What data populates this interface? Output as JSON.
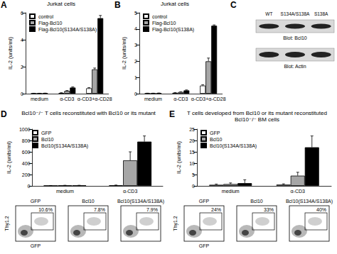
{
  "chart_data": [
    {
      "panel": "A",
      "type": "bar",
      "title": "Jurkat cells",
      "y_label": "IL-2 (units/ml)",
      "categories": [
        "medium",
        "α-CD3",
        "α-CD3+α-CD28"
      ],
      "series": [
        {
          "name": "control",
          "color": "#ffffff",
          "values": [
            0.02,
            0.05,
            0.4
          ],
          "errors": [
            0.01,
            0.02,
            0.05
          ]
        },
        {
          "name": "Flag-Bcl10",
          "color": "#a6a6a6",
          "values": [
            0.02,
            0.2,
            1.8
          ],
          "errors": [
            0.01,
            0.03,
            0.1
          ]
        },
        {
          "name": "Flag-Bcl10(S134A/S138A)",
          "color": "#000000",
          "values": [
            0.03,
            0.45,
            5.6
          ],
          "errors": [
            0.01,
            0.05,
            0.2
          ]
        }
      ],
      "ylim": [
        0,
        6
      ],
      "yticks": [
        0,
        2,
        4,
        6
      ],
      "grid": false,
      "legend": "top-left"
    },
    {
      "panel": "B",
      "type": "bar",
      "title": "Jurkat cells",
      "y_label": "IL-2 (units/ml)",
      "categories": [
        "medium",
        "α-CD3",
        "α-CD3+α-CD28"
      ],
      "series": [
        {
          "name": "control",
          "color": "#ffffff",
          "values": [
            0.02,
            0.05,
            0.5
          ],
          "errors": [
            0.01,
            0.02,
            0.05
          ]
        },
        {
          "name": "Flag-Bcl10",
          "color": "#a6a6a6",
          "values": [
            0.02,
            0.1,
            2.0
          ],
          "errors": [
            0.01,
            0.02,
            0.2
          ]
        },
        {
          "name": "Flag-Bcl10(S138A)",
          "color": "#000000",
          "values": [
            0.03,
            0.2,
            4.2
          ],
          "errors": [
            0.01,
            0.03,
            0.05
          ]
        }
      ],
      "ylim": [
        0,
        5
      ],
      "yticks": [
        0,
        1,
        2,
        3,
        4,
        5
      ],
      "grid": false,
      "legend": "top-left"
    },
    {
      "panel": "D",
      "type": "bar",
      "title": "Bcl10⁻/⁻ T cells reconstituted with Bcl10 or its mutant",
      "y_label": "IL-2 (units/ml)",
      "categories": [
        "medium",
        "α-CD3"
      ],
      "series": [
        {
          "name": "GFP",
          "color": "#ffffff",
          "values": [
            5,
            10
          ],
          "errors": [
            2,
            5
          ]
        },
        {
          "name": "Bcl10",
          "color": "#a6a6a6",
          "values": [
            8,
            450
          ],
          "errors": [
            3,
            150
          ]
        },
        {
          "name": "Bcl10(S134A/S138A)",
          "color": "#000000",
          "values": [
            8,
            780
          ],
          "errors": [
            3,
            100
          ]
        }
      ],
      "ylim": [
        0,
        1000
      ],
      "yticks": [
        0,
        200,
        400,
        600,
        800,
        1000
      ],
      "grid": false,
      "legend": "top-left"
    },
    {
      "panel": "E",
      "type": "bar",
      "title": "T cells developed from Bcl10 or its mutant reconstituted Bcl10⁻/⁻ BM cells",
      "y_label": "IL-2 (units/ml)",
      "categories": [
        "medium",
        "α-CD3"
      ],
      "series": [
        {
          "name": "GFP",
          "color": "#ffffff",
          "values": [
            0.5,
            0.6
          ],
          "errors": [
            0.3,
            0.3
          ]
        },
        {
          "name": "Bcl10",
          "color": "#a6a6a6",
          "values": [
            0.8,
            4.5
          ],
          "errors": [
            0.5,
            1.5
          ]
        },
        {
          "name": "Bcl10(S134A/S138A)",
          "color": "#000000",
          "values": [
            1.2,
            17
          ],
          "errors": [
            1.5,
            5
          ]
        }
      ],
      "ylim": [
        0,
        25
      ],
      "yticks": [
        0,
        5,
        10,
        15,
        20,
        25
      ],
      "grid": false,
      "legend": "top-left"
    }
  ],
  "blot": {
    "panel": "C",
    "lanes": [
      "WT",
      "S134A/S138A",
      "S138A"
    ],
    "blots": [
      "Blot: Bcl10",
      "Blot: Actin"
    ]
  },
  "flow": [
    {
      "panel": "D",
      "x_label": "GFP",
      "y_label": "Thy1.2",
      "plots": [
        {
          "name": "GFP",
          "gate": "10.6%"
        },
        {
          "name": "Bcl10",
          "gate": "7.8%"
        },
        {
          "name": "Bcl10(S134A/S138A)",
          "gate": "7.9%"
        }
      ]
    },
    {
      "panel": "E",
      "x_label": "GFP",
      "y_label": "Thy1.2",
      "plots": [
        {
          "name": "GFP",
          "gate": "24%"
        },
        {
          "name": "Bcl10",
          "gate": "33%"
        },
        {
          "name": "Bcl10(S134A/S138A)",
          "gate": "40%"
        }
      ]
    }
  ]
}
